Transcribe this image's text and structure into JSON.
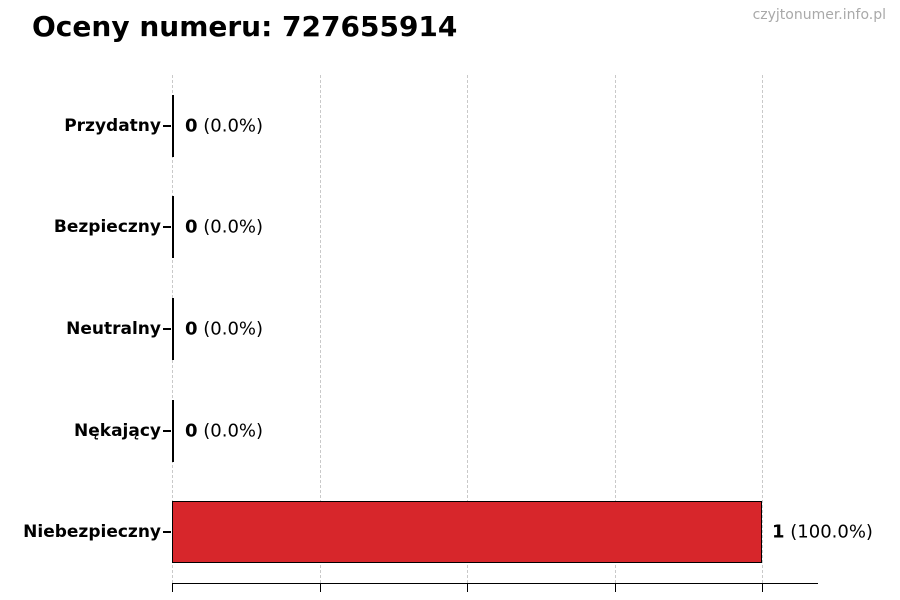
{
  "header": {
    "title": "Oceny numeru: 727655914",
    "watermark": "czyjtonumer.info.pl"
  },
  "chart_data": {
    "type": "bar",
    "orientation": "horizontal",
    "title": "Oceny numeru: 727655914",
    "categories": [
      "Przydatny",
      "Bezpieczny",
      "Neutralny",
      "Nękający",
      "Niebezpieczny"
    ],
    "values": [
      0,
      0,
      0,
      0,
      1
    ],
    "counts": [
      "0",
      "0",
      "0",
      "0",
      "1"
    ],
    "pct_labels": [
      "(0.0%)",
      "(0.0%)",
      "(0.0%)",
      "(0.0%)",
      "(100.0%)"
    ],
    "value_labels": [
      "0 (0.0%)",
      "0 (0.0%)",
      "0 (0.0%)",
      "0 (0.0%)",
      "1 (100.0%)"
    ],
    "xlabel": "",
    "ylabel": "",
    "xlim": [
      0,
      1
    ],
    "xticks": [
      0,
      0.25,
      0.5,
      0.75,
      1
    ],
    "xtick_labels_visible": false,
    "grid": "vertical-dashed",
    "legend": "none",
    "bar_color": "#d7262b",
    "bar_edge_color": "#000000"
  },
  "colors": {
    "background": "#ffffff",
    "bar_red": "#d7262b",
    "gridline": "#c9c9c9",
    "axis": "#000000",
    "text": "#000000",
    "watermark": "#a9a9a9"
  }
}
